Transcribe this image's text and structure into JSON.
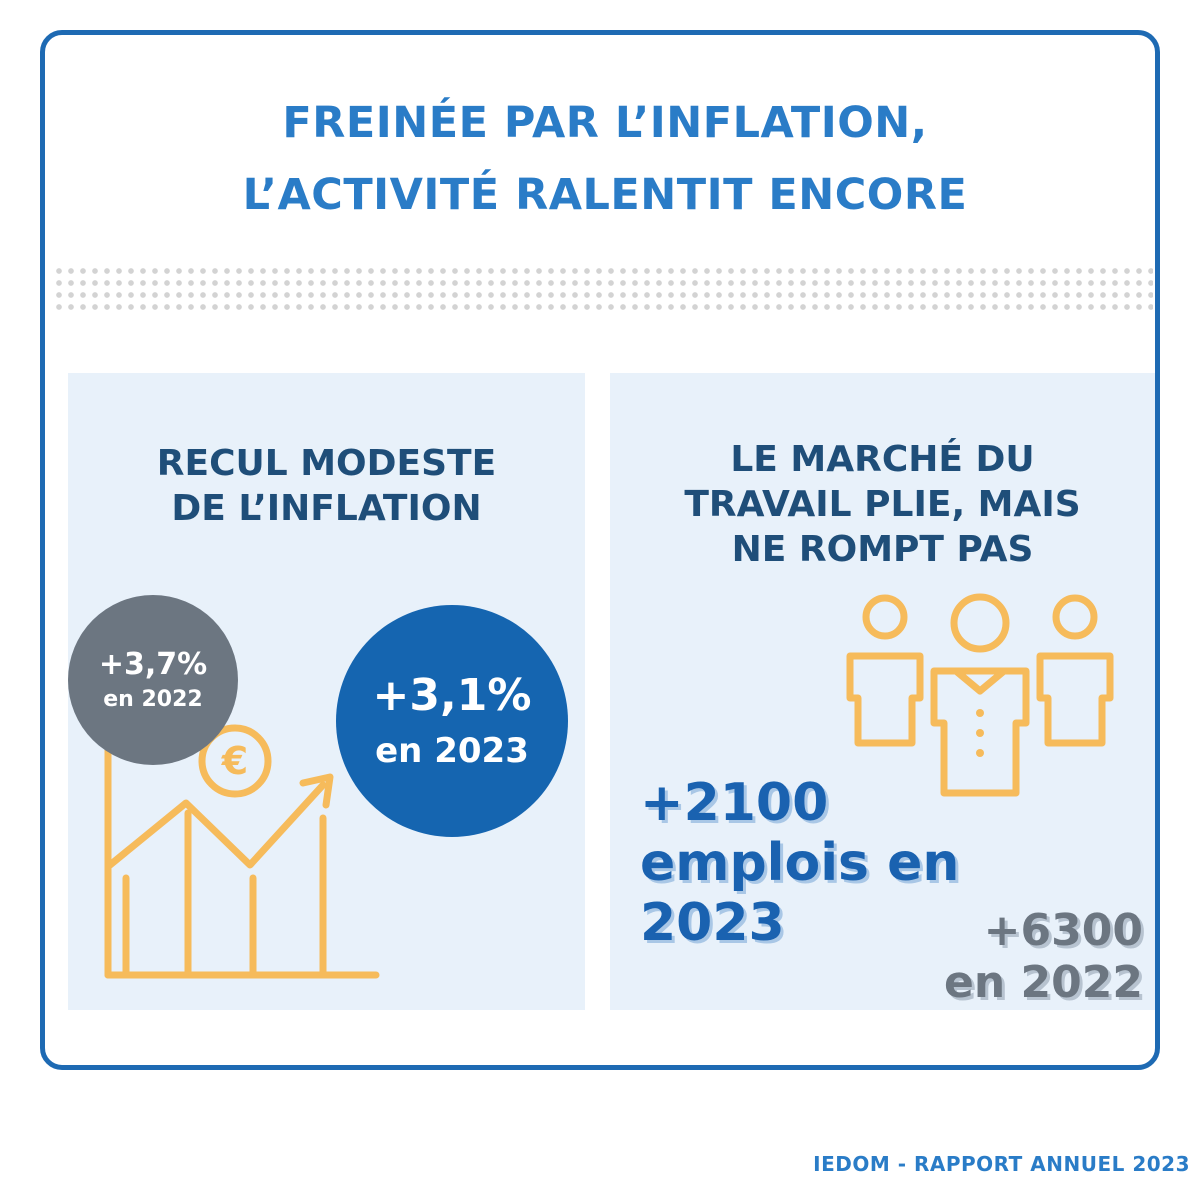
{
  "header": {
    "title_line1": "FREINÉE PAR L’INFLATION,",
    "title_line2": "L’ACTIVITÉ RALENTIT ENCORE"
  },
  "inflation_panel": {
    "title_line1": "RECUL MODESTE",
    "title_line2": "DE L’INFLATION",
    "previous": {
      "value": "+3,7%",
      "year": "en 2022"
    },
    "current": {
      "value": "+3,1%",
      "year": "en 2023"
    },
    "icon": "euro-growth-chart-icon"
  },
  "labour_panel": {
    "title_line1": "LE MARCHÉ DU",
    "title_line2": "TRAVAIL PLIE, MAIS",
    "title_line3": "NE ROMPT PAS",
    "icon": "people-group-icon",
    "current_line1": "+2100",
    "current_line2": "emplois en",
    "current_line3": "2023",
    "previous_line1": "+6300",
    "previous_line2": "en 2022"
  },
  "footer": {
    "text": "IEDOM - RAPPORT ANNUEL 2023"
  },
  "colors": {
    "frame": "#1e6ab3",
    "title": "#2a7cc7",
    "panel_bg": "#e8f1fa",
    "panel_title": "#1f4e79",
    "grey": "#6c7681",
    "blue": "#1565b0",
    "icon_yellow": "#f6bb5b"
  }
}
